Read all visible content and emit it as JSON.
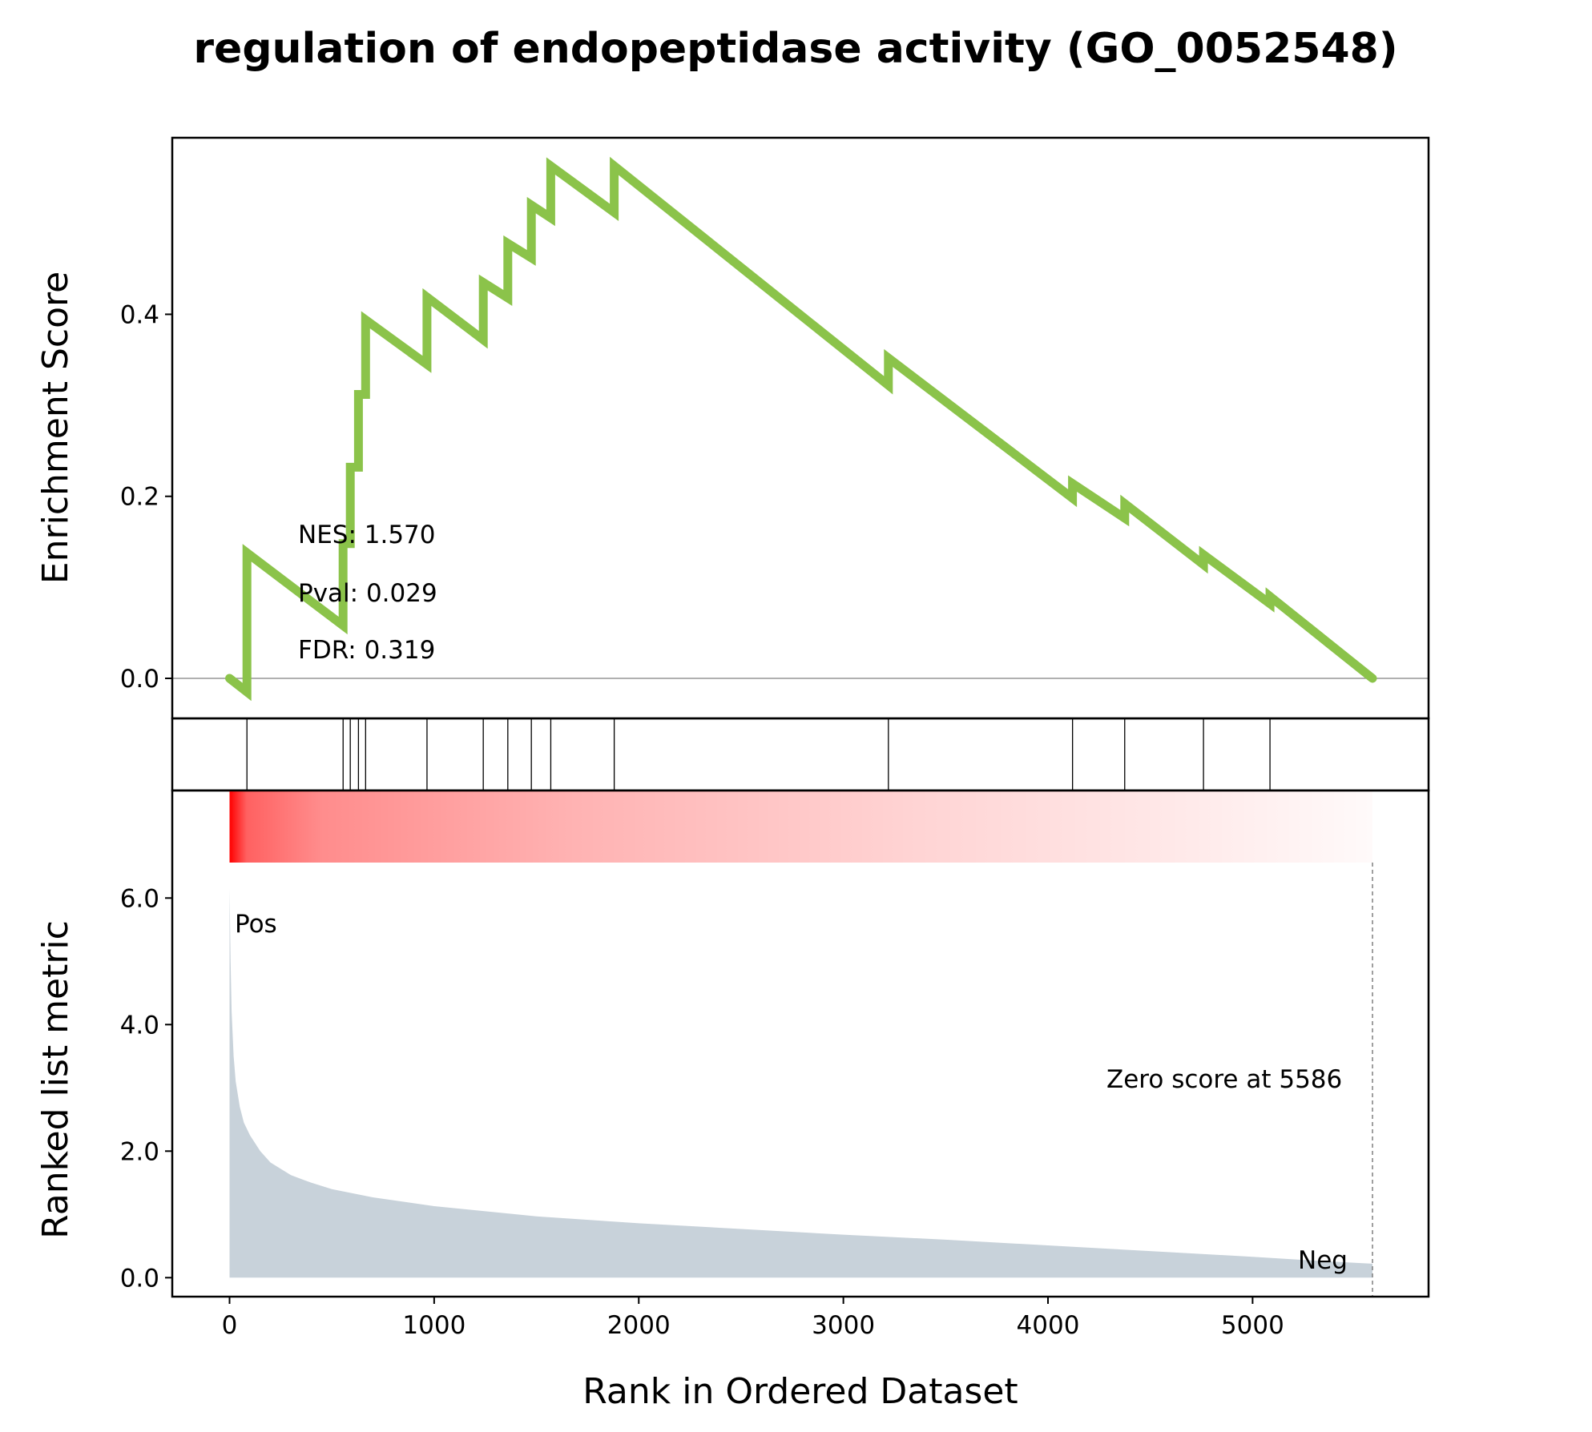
{
  "chart_data": {
    "type": "line",
    "title": "regulation of endopeptidase activity (GO_0052548)",
    "xlabel": "Rank in Ordered Dataset",
    "xlim": [
      -280,
      5860
    ],
    "x_ticks": [
      "0",
      "1000",
      "2000",
      "3000",
      "4000",
      "5000"
    ],
    "x_tick_values": [
      0,
      1000,
      2000,
      3000,
      4000,
      5000
    ],
    "enrichment": {
      "ylabel": "Enrichment Score",
      "ylim": [
        -0.044,
        0.594
      ],
      "y_ticks": [
        "0.0",
        "0.2",
        "0.4"
      ],
      "y_tick_values": [
        0.0,
        0.2,
        0.4
      ],
      "line_color": "#8bc34a",
      "zero_line_color": "#808080",
      "points": [
        [
          0,
          0.0
        ],
        [
          85,
          -0.015
        ],
        [
          85,
          0.138
        ],
        [
          555,
          0.058
        ],
        [
          555,
          0.148
        ],
        [
          590,
          0.148
        ],
        [
          590,
          0.232
        ],
        [
          630,
          0.232
        ],
        [
          630,
          0.312
        ],
        [
          665,
          0.312
        ],
        [
          665,
          0.394
        ],
        [
          965,
          0.345
        ],
        [
          965,
          0.419
        ],
        [
          1240,
          0.372
        ],
        [
          1240,
          0.435
        ],
        [
          1360,
          0.418
        ],
        [
          1360,
          0.478
        ],
        [
          1475,
          0.462
        ],
        [
          1475,
          0.52
        ],
        [
          1570,
          0.506
        ],
        [
          1570,
          0.563
        ],
        [
          1880,
          0.512
        ],
        [
          1880,
          0.563
        ],
        [
          3220,
          0.322
        ],
        [
          3220,
          0.352
        ],
        [
          4120,
          0.198
        ],
        [
          4120,
          0.214
        ],
        [
          4375,
          0.176
        ],
        [
          4375,
          0.192
        ],
        [
          4760,
          0.125
        ],
        [
          4760,
          0.136
        ],
        [
          5085,
          0.082
        ],
        [
          5085,
          0.09
        ],
        [
          5586,
          0.0
        ]
      ],
      "annotations": [
        "NES: 1.570",
        "Pval: 0.029",
        "FDR: 0.319"
      ]
    },
    "hits": {
      "ranks": [
        85,
        555,
        590,
        630,
        665,
        965,
        1240,
        1360,
        1475,
        1570,
        1880,
        3220,
        4120,
        4375,
        4760,
        5085
      ],
      "color": "#000000"
    },
    "ranked_metric": {
      "ylabel": "Ranked list metric",
      "ylim": [
        -0.3,
        7.7
      ],
      "y_ticks": [
        "0.0",
        "2.0",
        "4.0",
        "6.0"
      ],
      "y_tick_values": [
        0.0,
        2.0,
        4.0,
        6.0
      ],
      "fill_color": "#c8d2da",
      "heat_color": "#ff0000",
      "curve": [
        [
          0,
          6.15
        ],
        [
          5,
          5.0
        ],
        [
          10,
          4.2
        ],
        [
          20,
          3.5
        ],
        [
          30,
          3.1
        ],
        [
          50,
          2.7
        ],
        [
          70,
          2.45
        ],
        [
          100,
          2.25
        ],
        [
          150,
          2.0
        ],
        [
          200,
          1.82
        ],
        [
          300,
          1.62
        ],
        [
          400,
          1.5
        ],
        [
          500,
          1.4
        ],
        [
          700,
          1.27
        ],
        [
          1000,
          1.13
        ],
        [
          1500,
          0.97
        ],
        [
          2000,
          0.86
        ],
        [
          2500,
          0.77
        ],
        [
          3000,
          0.68
        ],
        [
          3500,
          0.6
        ],
        [
          4000,
          0.51
        ],
        [
          4500,
          0.42
        ],
        [
          5000,
          0.33
        ],
        [
          5300,
          0.27
        ],
        [
          5586,
          0.22
        ]
      ],
      "pos_label": "Pos",
      "neg_label": "Neg",
      "pos_color": "#ff0000",
      "neg_color": "#0000ff",
      "zero_score_text": "Zero score at 5586",
      "zero_score_rank": 5586
    }
  }
}
